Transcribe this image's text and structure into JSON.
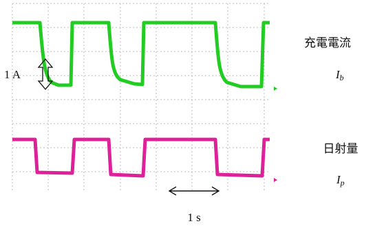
{
  "labels": {
    "current_scale": "1 A",
    "time_scale": "1 s",
    "charge_current": "充電電流",
    "charge_current_symbol": "I",
    "charge_current_subscript": "b",
    "irradiance": "日射量",
    "irradiance_symbol": "I",
    "irradiance_subscript": "p"
  }
}
